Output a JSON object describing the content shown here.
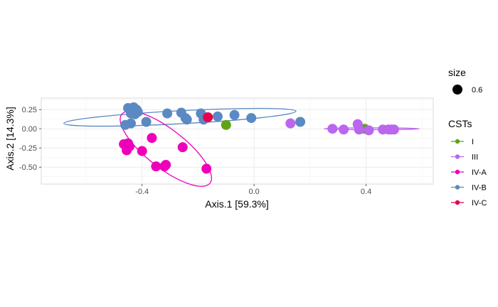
{
  "chart_data": {
    "type": "scatter",
    "xlabel": "Axis.1   [59.3%]",
    "ylabel": "Axis.2   [14.3%]",
    "xlim": [
      -0.76,
      0.64
    ],
    "ylim": [
      -0.72,
      0.4
    ],
    "x_ticks": [
      -0.4,
      0.0,
      0.4
    ],
    "x_tick_labels": [
      "-0.4",
      "0.0",
      "0.4"
    ],
    "y_ticks": [
      0.25,
      0.0,
      -0.25,
      -0.5
    ],
    "y_tick_labels": [
      "0.25",
      "0.00",
      "-0.25",
      "-0.50"
    ],
    "grid": true,
    "legend_position": "right",
    "size_legend": {
      "title": "size",
      "items": [
        {
          "label": "0.6"
        }
      ]
    },
    "color_legend_title": "CSTs",
    "series": [
      {
        "name": "I",
        "color": "#5ea416",
        "points": [
          [
            -0.1,
            0.05
          ],
          [
            0.395,
            0.0
          ]
        ]
      },
      {
        "name": "III",
        "color": "#bb66ee",
        "points": [
          [
            0.13,
            0.07
          ],
          [
            0.28,
            0.0
          ],
          [
            0.32,
            -0.01
          ],
          [
            0.37,
            0.06
          ],
          [
            0.375,
            -0.01
          ],
          [
            0.41,
            -0.02
          ],
          [
            0.46,
            -0.01
          ],
          [
            0.48,
            -0.01
          ],
          [
            0.49,
            -0.01
          ],
          [
            0.5,
            -0.01
          ]
        ]
      },
      {
        "name": "IV-A",
        "color": "#ee00bb",
        "points": [
          [
            -0.465,
            -0.2
          ],
          [
            -0.455,
            -0.28
          ],
          [
            -0.45,
            -0.19
          ],
          [
            -0.445,
            -0.23
          ],
          [
            -0.4,
            -0.29
          ],
          [
            -0.365,
            -0.12
          ],
          [
            -0.35,
            -0.49
          ],
          [
            -0.32,
            -0.49
          ],
          [
            -0.315,
            -0.47
          ],
          [
            -0.255,
            -0.24
          ],
          [
            -0.17,
            -0.52
          ]
        ]
      },
      {
        "name": "IV-B",
        "color": "#5a89c3",
        "points": [
          [
            -0.45,
            0.27
          ],
          [
            -0.43,
            0.28
          ],
          [
            -0.42,
            0.25
          ],
          [
            -0.415,
            0.22
          ],
          [
            -0.44,
            0.2
          ],
          [
            -0.425,
            0.19
          ],
          [
            -0.46,
            0.05
          ],
          [
            -0.44,
            0.07
          ],
          [
            -0.385,
            0.09
          ],
          [
            -0.31,
            0.2
          ],
          [
            -0.26,
            0.21
          ],
          [
            -0.245,
            0.14
          ],
          [
            -0.24,
            0.12
          ],
          [
            -0.19,
            0.2
          ],
          [
            -0.18,
            0.12
          ],
          [
            -0.13,
            0.16
          ],
          [
            -0.07,
            0.18
          ],
          [
            -0.01,
            0.14
          ],
          [
            0.165,
            0.09
          ]
        ]
      },
      {
        "name": "IV-C",
        "color": "#e8004d",
        "points": [
          [
            -0.165,
            0.15
          ]
        ]
      }
    ],
    "ellipses": [
      {
        "series": "IV-B",
        "center": [
          -0.265,
          0.15
        ],
        "rx": 0.415,
        "ry": 0.085,
        "angle_deg": -3
      },
      {
        "series": "IV-A",
        "center": [
          -0.315,
          -0.26
        ],
        "rx": 0.2,
        "ry": 0.25,
        "angle_deg": 38
      },
      {
        "series": "III",
        "center": [
          0.42,
          0.0
        ],
        "rx": 0.17,
        "ry": 0.012,
        "angle_deg": 0
      }
    ]
  }
}
